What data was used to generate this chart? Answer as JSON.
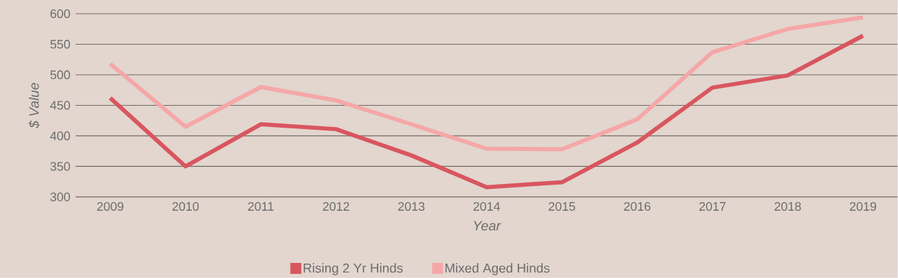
{
  "chart_data": {
    "type": "line",
    "xlabel": "Year",
    "ylabel": "$ Value",
    "categories": [
      "2009",
      "2010",
      "2011",
      "2012",
      "2013",
      "2014",
      "2015",
      "2016",
      "2017",
      "2018",
      "2019"
    ],
    "series": [
      {
        "name": "Rising 2 Yr Hinds",
        "color": "#d9565f",
        "values": [
          462,
          350,
          419,
          411,
          368,
          316,
          324,
          389,
          479,
          499,
          564
        ]
      },
      {
        "name": "Mixed Aged Hinds",
        "color": "#f5a7a8",
        "values": [
          518,
          415,
          480,
          458,
          419,
          379,
          378,
          427,
          537,
          575,
          594
        ]
      }
    ],
    "ylim": [
      300,
      600
    ],
    "yticks": [
      300,
      350,
      400,
      450,
      500,
      550,
      600
    ],
    "grid": "y",
    "legend": "bottom",
    "marker": "none",
    "line_style": "solid"
  }
}
